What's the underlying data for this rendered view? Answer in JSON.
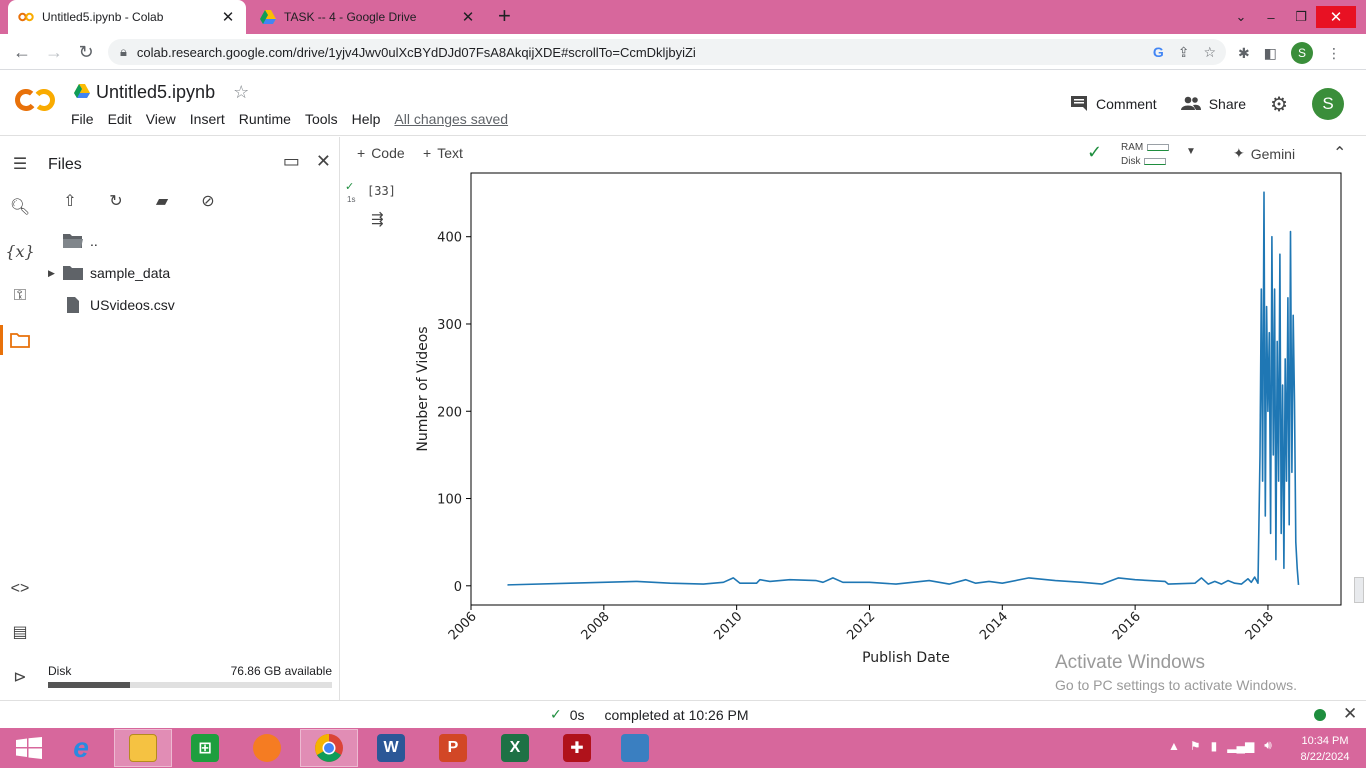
{
  "browser": {
    "tabs": [
      {
        "title": "Untitled5.ipynb - Colab",
        "active": true
      },
      {
        "title": "TASK -- 4 - Google Drive",
        "active": false
      }
    ],
    "url": "colab.research.google.com/drive/1yjv4Jwv0ulXcBYdDJd07FsA8AkqijXDE#scrollTo=CcmDkljbyiZi",
    "profile_initial": "S"
  },
  "colab": {
    "logo": "CO",
    "notebook_title": "Untitled5.ipynb",
    "menu": [
      "File",
      "Edit",
      "View",
      "Insert",
      "Runtime",
      "Tools",
      "Help"
    ],
    "save_status": "All changes saved",
    "comment_label": "Comment",
    "share_label": "Share",
    "user_initial": "S"
  },
  "files_panel": {
    "title": "Files",
    "items": [
      {
        "name": "..",
        "type": "parent-folder"
      },
      {
        "name": "sample_data",
        "type": "folder"
      },
      {
        "name": "USvideos.csv",
        "type": "file"
      }
    ],
    "disk_label": "Disk",
    "disk_available": "76.86 GB available",
    "disk_used_fraction": 0.29
  },
  "toolbar": {
    "code_label": "Code",
    "text_label": "Text",
    "ram_label": "RAM",
    "disk_label": "Disk",
    "gemini_label": "Gemini"
  },
  "cell": {
    "exec_count": "[33]",
    "exec_time": "1s"
  },
  "chart_data": {
    "type": "line",
    "title": "",
    "xlabel": "Publish Date",
    "ylabel": "Number of Videos",
    "xlim": [
      2006.0,
      2019.1
    ],
    "ylim": [
      -22,
      473
    ],
    "xticks": [
      "2006",
      "2008",
      "2010",
      "2012",
      "2014",
      "2016",
      "2018"
    ],
    "yticks": [
      0,
      100,
      200,
      300,
      400
    ],
    "color": "#1f77b4",
    "series": [
      {
        "x": [
          2006.55,
          2007.5,
          2008.5,
          2009.0,
          2009.5,
          2009.8,
          2009.95,
          2010.05,
          2010.3,
          2010.35,
          2010.5,
          2010.8,
          2011.2,
          2011.3,
          2011.45,
          2011.6,
          2012.0,
          2012.4,
          2012.9,
          2013.2,
          2013.45,
          2013.6,
          2013.8,
          2014.0,
          2014.4,
          2014.8,
          2015.2,
          2015.5,
          2015.75,
          2016.0,
          2016.45,
          2016.5,
          2016.9,
          2017.0,
          2017.1,
          2017.2,
          2017.3,
          2017.4,
          2017.5,
          2017.6,
          2017.7,
          2017.75,
          2017.8,
          2017.85,
          2017.88,
          2017.9,
          2017.92,
          2017.94,
          2017.96,
          2017.98,
          2018.0,
          2018.02,
          2018.04,
          2018.06,
          2018.08,
          2018.1,
          2018.12,
          2018.14,
          2018.16,
          2018.18,
          2018.2,
          2018.22,
          2018.24,
          2018.26,
          2018.28,
          2018.3,
          2018.32,
          2018.34,
          2018.36,
          2018.38,
          2018.4,
          2018.42,
          2018.44,
          2018.46
        ],
        "y": [
          1,
          3,
          5,
          3,
          2,
          4,
          9,
          3,
          3,
          7,
          5,
          7,
          6,
          4,
          9,
          4,
          4,
          2,
          6,
          2,
          7,
          3,
          5,
          3,
          9,
          6,
          4,
          2,
          9,
          7,
          5,
          2,
          3,
          9,
          2,
          5,
          2,
          6,
          3,
          2,
          8,
          4,
          10,
          3,
          150,
          340,
          120,
          451,
          80,
          320,
          200,
          290,
          60,
          400,
          150,
          340,
          30,
          280,
          120,
          380,
          60,
          230,
          20,
          260,
          120,
          330,
          70,
          406,
          130,
          310,
          210,
          50,
          20,
          1
        ]
      }
    ]
  },
  "status": {
    "duration": "0s",
    "completed": "completed at 10:26 PM"
  },
  "watermark": {
    "line1": "Activate Windows",
    "line2": "Go to PC settings to activate Windows."
  },
  "clock": {
    "time": "10:34 PM",
    "date": "8/22/2024"
  }
}
